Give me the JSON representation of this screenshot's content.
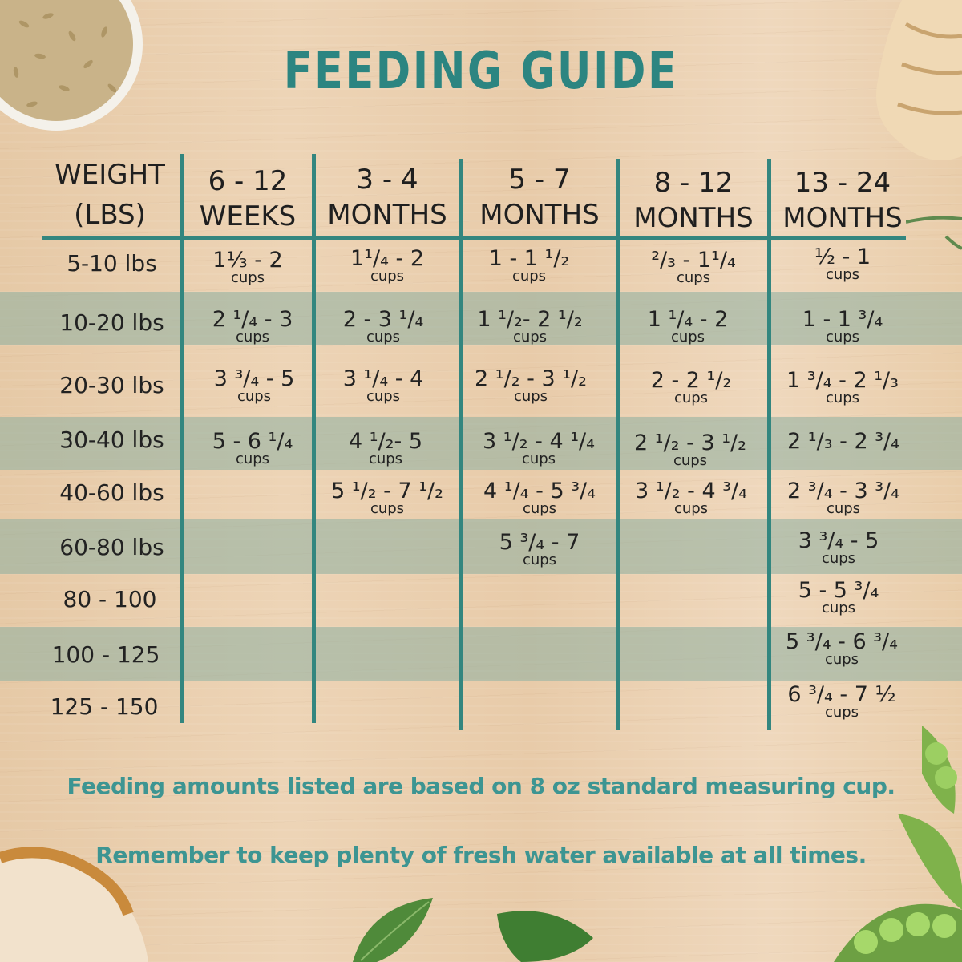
{
  "title": "FEEDING GUIDE",
  "table": {
    "headers": [
      {
        "line1": "WEIGHT",
        "line2": "(LBS)"
      },
      {
        "line1": "6 - 12",
        "line2": "WEEKS"
      },
      {
        "line1": "3 - 4",
        "line2": "MONTHS"
      },
      {
        "line1": "5 - 7",
        "line2": "MONTHS"
      },
      {
        "line1": "8 - 12",
        "line2": "MONTHS"
      },
      {
        "line1": "13 - 24",
        "line2": "MONTHS"
      }
    ],
    "rows": [
      {
        "weight": "5-10 lbs",
        "cells": [
          {
            "amount": "1⅓ - 2",
            "unit": "cups"
          },
          {
            "amount": "1¹/₄ - 2",
            "unit": "cups"
          },
          {
            "amount": "1 - 1 ¹/₂",
            "unit": "cups"
          },
          {
            "amount": "²/₃ - 1¹/₄",
            "unit": "cups"
          },
          {
            "amount": "½ - 1",
            "unit": "cups"
          }
        ]
      },
      {
        "weight": "10-20 lbs",
        "cells": [
          {
            "amount": "2 ¹/₄ - 3",
            "unit": "cups"
          },
          {
            "amount": "2 - 3 ¹/₄",
            "unit": "cups"
          },
          {
            "amount": "1 ¹/₂- 2 ¹/₂",
            "unit": "cups"
          },
          {
            "amount": "1 ¹/₄ - 2",
            "unit": "cups"
          },
          {
            "amount": "1 - 1 ³/₄",
            "unit": "cups"
          }
        ]
      },
      {
        "weight": "20-30 lbs",
        "cells": [
          {
            "amount": "3 ³/₄ - 5",
            "unit": "cups"
          },
          {
            "amount": "3 ¹/₄  - 4",
            "unit": "cups"
          },
          {
            "amount": "2 ¹/₂ - 3 ¹/₂",
            "unit": "cups"
          },
          {
            "amount": "2 - 2 ¹/₂",
            "unit": "cups"
          },
          {
            "amount": "1 ³/₄ - 2 ¹/₃",
            "unit": "cups"
          }
        ]
      },
      {
        "weight": "30-40 lbs",
        "cells": [
          {
            "amount": "5 - 6 ¹/₄",
            "unit": "cups"
          },
          {
            "amount": "4 ¹/₂- 5",
            "unit": "cups"
          },
          {
            "amount": "3 ¹/₂ - 4 ¹/₄",
            "unit": "cups"
          },
          {
            "amount": "2 ¹/₂ - 3 ¹/₂",
            "unit": "cups"
          },
          {
            "amount": "2 ¹/₃ - 2 ³/₄",
            "unit": ""
          }
        ]
      },
      {
        "weight": "40-60 lbs",
        "cells": [
          {
            "amount": "",
            "unit": ""
          },
          {
            "amount": "5 ¹/₂ - 7 ¹/₂",
            "unit": "cups"
          },
          {
            "amount": "4 ¹/₄ - 5 ³/₄",
            "unit": "cups"
          },
          {
            "amount": "3 ¹/₂ - 4 ³/₄",
            "unit": "cups"
          },
          {
            "amount": "2 ³/₄ - 3 ³/₄",
            "unit": "cups"
          }
        ]
      },
      {
        "weight": "60-80 lbs",
        "cells": [
          {
            "amount": "",
            "unit": ""
          },
          {
            "amount": "",
            "unit": ""
          },
          {
            "amount": "5 ³/₄ - 7",
            "unit": "cups"
          },
          {
            "amount": "",
            "unit": ""
          },
          {
            "amount": "3 ³/₄ - 5",
            "unit": "cups"
          }
        ]
      },
      {
        "weight": "80 - 100",
        "cells": [
          {
            "amount": "",
            "unit": ""
          },
          {
            "amount": "",
            "unit": ""
          },
          {
            "amount": "",
            "unit": ""
          },
          {
            "amount": "",
            "unit": ""
          },
          {
            "amount": "5 - 5 ³/₄",
            "unit": "cups"
          }
        ]
      },
      {
        "weight": "100 - 125",
        "cells": [
          {
            "amount": "",
            "unit": ""
          },
          {
            "amount": "",
            "unit": ""
          },
          {
            "amount": "",
            "unit": ""
          },
          {
            "amount": "",
            "unit": ""
          },
          {
            "amount": "5 ³/₄ - 6 ³/₄",
            "unit": "cups"
          }
        ]
      },
      {
        "weight": "125 - 150",
        "cells": [
          {
            "amount": "",
            "unit": ""
          },
          {
            "amount": "",
            "unit": ""
          },
          {
            "amount": "",
            "unit": ""
          },
          {
            "amount": "",
            "unit": ""
          },
          {
            "amount": "6 ³/₄ - 7 ½",
            "unit": "cups"
          }
        ]
      }
    ]
  },
  "notes": [
    "Feeding amounts listed are based on 8 oz standard measuring cup.",
    "Remember to keep plenty of fresh water available at all times."
  ],
  "colors": {
    "accent": "#2c8581",
    "band": "#8cafa0",
    "note_text": "#3d9592",
    "wood": "#e8cba9"
  }
}
